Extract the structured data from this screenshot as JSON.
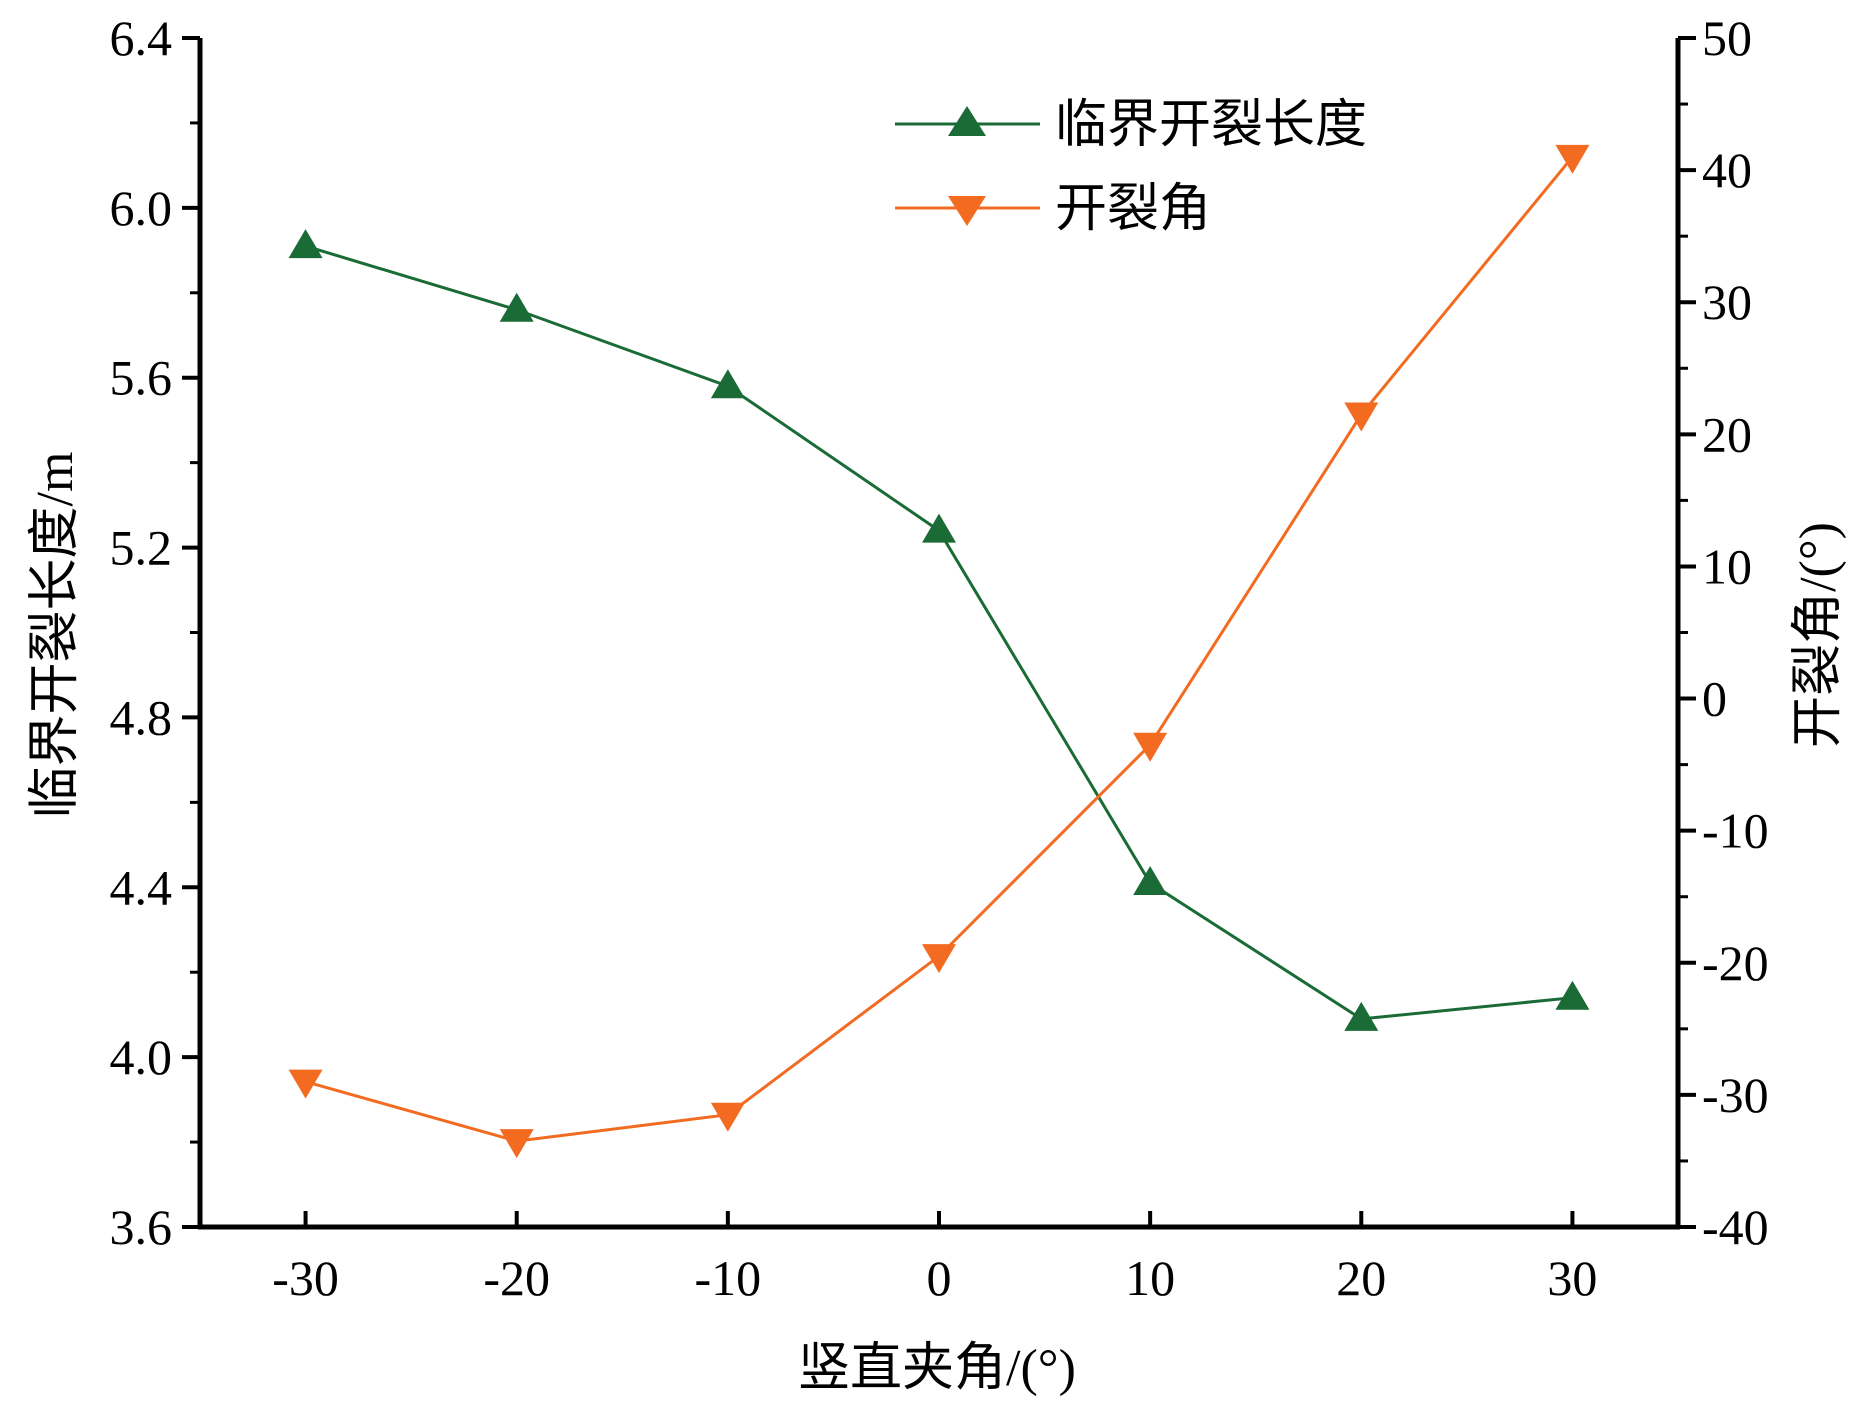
{
  "chart_data": {
    "type": "line",
    "title": "",
    "xlabel": "竖直夹角/(°)",
    "ylabel_left": "临界开裂长度/m",
    "ylabel_right": "开裂角/(°)",
    "x": [
      -30,
      -20,
      -10,
      0,
      10,
      20,
      30
    ],
    "x_ticks": [
      "-30",
      "-20",
      "-10",
      "0",
      "10",
      "20",
      "30"
    ],
    "xlim": [
      -35,
      35
    ],
    "ylim_left": [
      3.6,
      6.4
    ],
    "ylim_right": [
      -40,
      50
    ],
    "y_ticks_left": [
      "3.6",
      "4.0",
      "4.4",
      "4.8",
      "5.2",
      "5.6",
      "6.0",
      "6.4"
    ],
    "y_ticks_right": [
      "-40",
      "-30",
      "-20",
      "-10",
      "0",
      "10",
      "20",
      "30",
      "40",
      "50"
    ],
    "grid": false,
    "legend_position": "top-right",
    "series": [
      {
        "name": "临界开裂长度",
        "axis": "left",
        "marker": "triangle-up",
        "color": "#1a6b35",
        "values": [
          5.91,
          5.76,
          5.58,
          5.24,
          4.41,
          4.09,
          4.14
        ]
      },
      {
        "name": "开裂角",
        "axis": "right",
        "marker": "triangle-down",
        "color": "#f26b21",
        "values": [
          -29,
          -33.5,
          -31.5,
          -19.5,
          -3.5,
          21.5,
          41
        ]
      }
    ]
  }
}
